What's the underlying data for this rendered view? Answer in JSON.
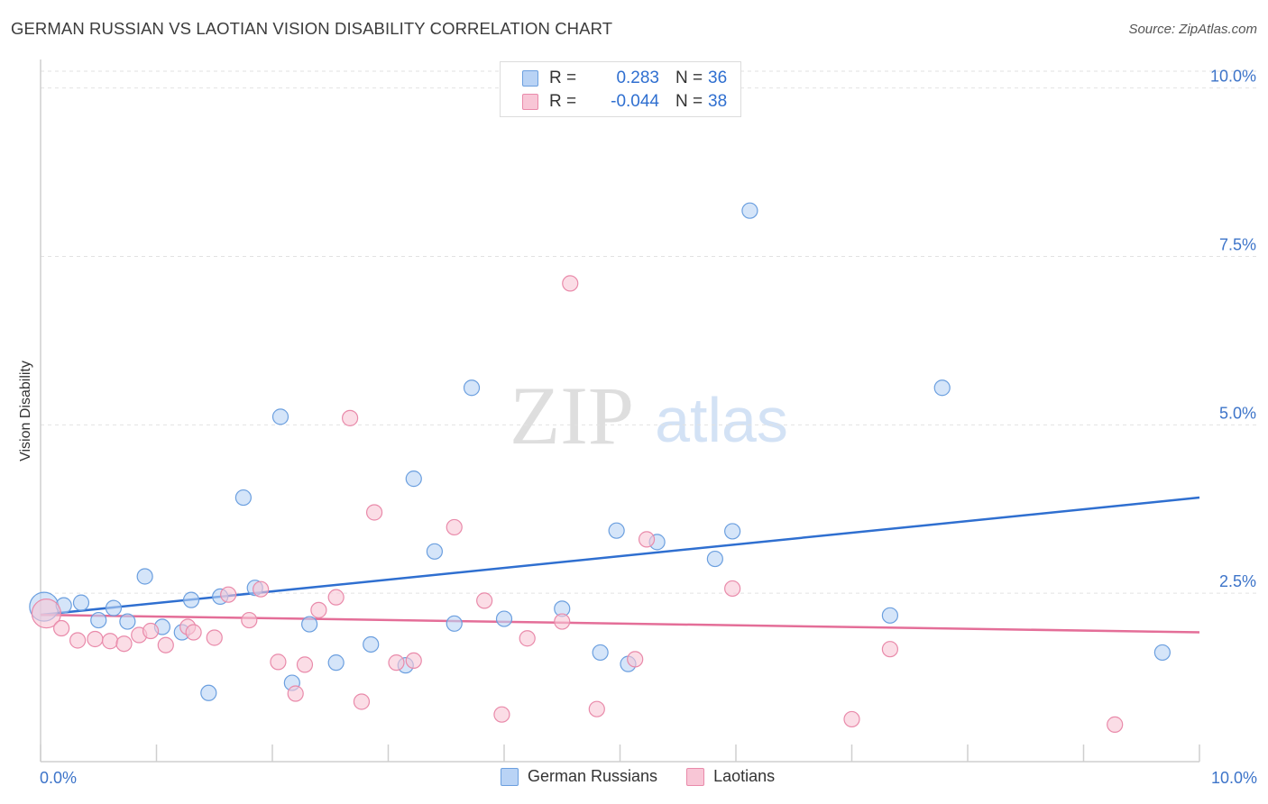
{
  "title": "GERMAN RUSSIAN VS LAOTIAN VISION DISABILITY CORRELATION CHART",
  "source": "Source: ZipAtlas.com",
  "watermark": {
    "zip": "ZIP",
    "atlas": "atlas"
  },
  "legend": {
    "r_label": "R =",
    "n_label": "N =",
    "rows": [
      {
        "r": "0.283",
        "n": "36"
      },
      {
        "r": "-0.044",
        "n": "38"
      }
    ]
  },
  "x_tick_left": "0.0%",
  "x_tick_right": "10.0%",
  "colors": {
    "blue_fill": "#b9d3f5",
    "blue_stroke": "#6b9fdf",
    "blue_line": "#2f6fd0",
    "pink_fill": "#f8c6d6",
    "pink_stroke": "#e98aaa",
    "pink_line": "#e46e98",
    "tick_text": "#3d74c9"
  },
  "chart_data": {
    "type": "scatter",
    "title": "GERMAN RUSSIAN VS LAOTIAN VISION DISABILITY CORRELATION CHART",
    "xlabel": "",
    "ylabel": "Vision Disability",
    "xlim": [
      0,
      10
    ],
    "ylim": [
      0,
      10.25
    ],
    "y_ticks": [
      {
        "value": 2.5,
        "label": "2.5%"
      },
      {
        "value": 5.0,
        "label": "5.0%"
      },
      {
        "value": 7.5,
        "label": "7.5%"
      },
      {
        "value": 10.0,
        "label": "10.0%"
      }
    ],
    "grid": true,
    "legend_position": "top-center",
    "series": [
      {
        "name": "German Russians",
        "r": 0.283,
        "n": 36,
        "trend": {
          "x0": 0,
          "y0": 2.18,
          "x1": 10,
          "y1": 3.92
        },
        "points": [
          {
            "x": 0.03,
            "y": 2.3,
            "big": true
          },
          {
            "x": 0.2,
            "y": 2.32
          },
          {
            "x": 0.35,
            "y": 2.36
          },
          {
            "x": 0.5,
            "y": 2.1
          },
          {
            "x": 0.63,
            "y": 2.28
          },
          {
            "x": 0.75,
            "y": 2.08
          },
          {
            "x": 0.9,
            "y": 2.75
          },
          {
            "x": 1.05,
            "y": 2.0
          },
          {
            "x": 1.22,
            "y": 1.92
          },
          {
            "x": 1.3,
            "y": 2.4
          },
          {
            "x": 1.45,
            "y": 1.02
          },
          {
            "x": 1.55,
            "y": 2.45
          },
          {
            "x": 1.75,
            "y": 3.92
          },
          {
            "x": 1.85,
            "y": 2.58
          },
          {
            "x": 2.07,
            "y": 5.12
          },
          {
            "x": 2.17,
            "y": 1.17
          },
          {
            "x": 2.32,
            "y": 2.04
          },
          {
            "x": 2.55,
            "y": 1.47
          },
          {
            "x": 2.85,
            "y": 1.74
          },
          {
            "x": 3.15,
            "y": 1.43
          },
          {
            "x": 3.22,
            "y": 4.2
          },
          {
            "x": 3.4,
            "y": 3.12
          },
          {
            "x": 3.57,
            "y": 2.05
          },
          {
            "x": 3.72,
            "y": 5.55
          },
          {
            "x": 4.0,
            "y": 2.12
          },
          {
            "x": 4.5,
            "y": 2.27
          },
          {
            "x": 4.83,
            "y": 1.62
          },
          {
            "x": 4.97,
            "y": 3.43
          },
          {
            "x": 5.07,
            "y": 1.45
          },
          {
            "x": 5.32,
            "y": 3.26
          },
          {
            "x": 5.82,
            "y": 3.01
          },
          {
            "x": 5.97,
            "y": 3.42
          },
          {
            "x": 6.12,
            "y": 8.18
          },
          {
            "x": 7.33,
            "y": 2.17
          },
          {
            "x": 7.78,
            "y": 5.55
          },
          {
            "x": 9.68,
            "y": 1.62
          }
        ]
      },
      {
        "name": "Laotians",
        "r": -0.044,
        "n": 38,
        "trend": {
          "x0": 0,
          "y0": 2.18,
          "x1": 10,
          "y1": 1.92
        },
        "points": [
          {
            "x": 0.05,
            "y": 2.2,
            "big": true
          },
          {
            "x": 0.18,
            "y": 1.98
          },
          {
            "x": 0.32,
            "y": 1.8
          },
          {
            "x": 0.47,
            "y": 1.82
          },
          {
            "x": 0.6,
            "y": 1.79
          },
          {
            "x": 0.72,
            "y": 1.75
          },
          {
            "x": 0.85,
            "y": 1.88
          },
          {
            "x": 0.95,
            "y": 1.94
          },
          {
            "x": 1.08,
            "y": 1.73
          },
          {
            "x": 1.27,
            "y": 2.0
          },
          {
            "x": 1.32,
            "y": 1.92
          },
          {
            "x": 1.5,
            "y": 1.84
          },
          {
            "x": 1.62,
            "y": 2.48
          },
          {
            "x": 1.8,
            "y": 2.1
          },
          {
            "x": 1.9,
            "y": 2.56
          },
          {
            "x": 2.05,
            "y": 1.48
          },
          {
            "x": 2.2,
            "y": 1.01
          },
          {
            "x": 2.28,
            "y": 1.44
          },
          {
            "x": 2.4,
            "y": 2.25
          },
          {
            "x": 2.55,
            "y": 2.44
          },
          {
            "x": 2.67,
            "y": 5.1
          },
          {
            "x": 2.77,
            "y": 0.89
          },
          {
            "x": 2.88,
            "y": 3.7
          },
          {
            "x": 3.07,
            "y": 1.47
          },
          {
            "x": 3.22,
            "y": 1.5
          },
          {
            "x": 3.57,
            "y": 3.48
          },
          {
            "x": 3.83,
            "y": 2.39
          },
          {
            "x": 3.98,
            "y": 0.7
          },
          {
            "x": 4.2,
            "y": 1.83
          },
          {
            "x": 4.5,
            "y": 2.08
          },
          {
            "x": 4.57,
            "y": 7.1
          },
          {
            "x": 4.8,
            "y": 0.78
          },
          {
            "x": 5.13,
            "y": 1.52
          },
          {
            "x": 5.23,
            "y": 3.3
          },
          {
            "x": 5.97,
            "y": 2.57
          },
          {
            "x": 7.0,
            "y": 0.63
          },
          {
            "x": 7.33,
            "y": 1.67
          },
          {
            "x": 9.27,
            "y": 0.55
          }
        ]
      }
    ]
  }
}
